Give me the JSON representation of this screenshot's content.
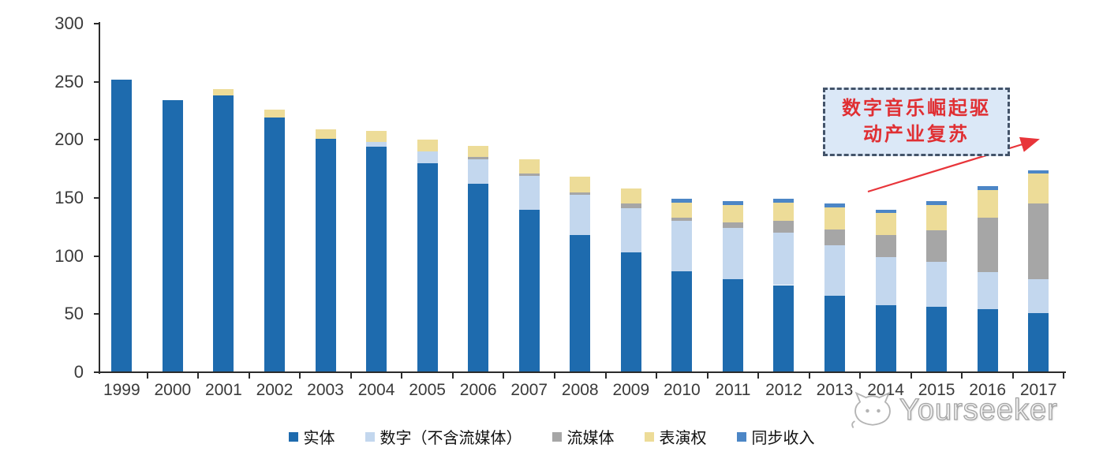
{
  "chart_data": {
    "type": "bar",
    "stacked": true,
    "title": "",
    "xlabel": "",
    "ylabel": "",
    "ylim": [
      0,
      300
    ],
    "yticks": [
      0,
      50,
      100,
      150,
      200,
      250,
      300
    ],
    "grid": false,
    "legend_position": "bottom",
    "categories": [
      "1999",
      "2000",
      "2001",
      "2002",
      "2003",
      "2004",
      "2005",
      "2006",
      "2007",
      "2008",
      "2009",
      "2010",
      "2011",
      "2012",
      "2013",
      "2014",
      "2015",
      "2016",
      "2017"
    ],
    "series": [
      {
        "name": "实体",
        "color": "#1E6BAE",
        "values": [
          252,
          234,
          238,
          219,
          201,
          194,
          180,
          162,
          140,
          118,
          103,
          87,
          80,
          75,
          66,
          58,
          56,
          54,
          51
        ]
      },
      {
        "name": "数字（不含流媒体）",
        "color": "#C3D7EE",
        "values": [
          0,
          0,
          0,
          0,
          0,
          4,
          10,
          21,
          29,
          35,
          38,
          43,
          44,
          45,
          43,
          41,
          39,
          32,
          29
        ]
      },
      {
        "name": "流媒体",
        "color": "#A6A6A6",
        "values": [
          0,
          0,
          0,
          0,
          0,
          0,
          0,
          2,
          2,
          2,
          4,
          3,
          5,
          10,
          14,
          19,
          27,
          47,
          65
        ]
      },
      {
        "name": "表演权",
        "color": "#EDDC98",
        "values": [
          0,
          0,
          6,
          7,
          8,
          10,
          10,
          10,
          12,
          13,
          13,
          13,
          15,
          16,
          19,
          19,
          22,
          24,
          26
        ]
      },
      {
        "name": "同步收入",
        "color": "#4C86C6",
        "values": [
          0,
          0,
          0,
          0,
          0,
          0,
          0,
          0,
          0,
          0,
          0,
          3,
          3,
          3,
          3,
          3,
          3,
          3,
          3
        ]
      }
    ],
    "totals": [
      252,
      234,
      244,
      226,
      209,
      208,
      200,
      195,
      183,
      168,
      158,
      149,
      147,
      149,
      145,
      140,
      147,
      160,
      174
    ]
  },
  "annotation": {
    "line1": "数字音乐崛起驱",
    "line2": "动产业复苏",
    "text_color": "#E02F33",
    "box_bg": "#DBE8F7",
    "border_color": "#44546A",
    "arrow_color": "#E8353A"
  },
  "watermark": {
    "text": "Yourseeker",
    "logo": "cat-face-icon",
    "color": "#a3a3a3"
  }
}
